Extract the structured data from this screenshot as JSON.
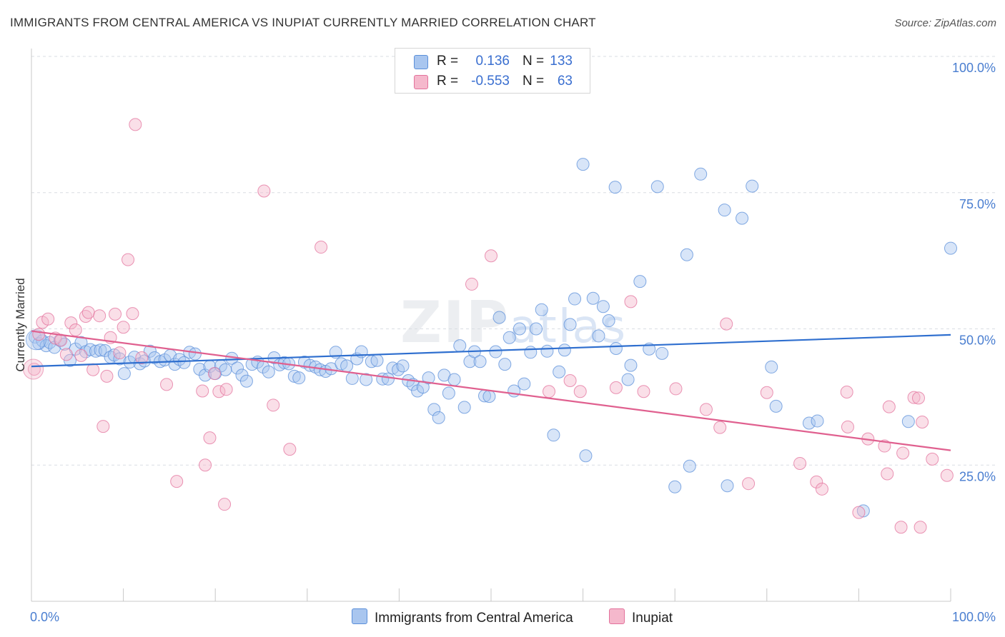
{
  "title": "IMMIGRANTS FROM CENTRAL AMERICA VS INUPIAT CURRENTLY MARRIED CORRELATION CHART",
  "source": "Source: ZipAtlas.com",
  "watermark": {
    "zip": "ZIP",
    "atlas": "atlas"
  },
  "colors": {
    "blue": "#5b8fd9",
    "blue_fill": "#a9c6ef",
    "pink": "#e3729c",
    "pink_fill": "#f5b8cc",
    "axis_text": "#4a7ed0"
  },
  "legend": {
    "rows": [
      {
        "r_label": "R =",
        "r_value": "0.136",
        "n_label": "N =",
        "n_value": "133"
      },
      {
        "r_label": "R =",
        "r_value": "-0.553",
        "n_label": "N =",
        "n_value": "63"
      }
    ]
  },
  "bottom_legend": [
    "Immigrants from Central America",
    "Inupiat"
  ],
  "chart_data": {
    "type": "scatter",
    "title": "IMMIGRANTS FROM CENTRAL AMERICA VS INUPIAT CURRENTLY MARRIED CORRELATION CHART",
    "xlabel": "",
    "ylabel": "Currently Married",
    "xlim": [
      0,
      100
    ],
    "ylim": [
      0,
      100
    ],
    "x_tick_labels": [
      "0.0%",
      "100.0%"
    ],
    "y_ticks": [
      25,
      50,
      75,
      100
    ],
    "y_tick_labels": [
      "25.0%",
      "50.0%",
      "75.0%",
      "100.0%"
    ],
    "grid": "horizontal dashed",
    "legend_position": "top-center",
    "series": [
      {
        "name": "Immigrants from Central America",
        "color": "#5b8fd9",
        "trend": {
          "x": [
            0,
            100
          ],
          "y": [
            43.1,
            48.9
          ]
        },
        "points": [
          [
            0.4,
            48.5
          ],
          [
            0.8,
            47.3
          ],
          [
            1.2,
            47.8
          ],
          [
            1.6,
            46.9
          ],
          [
            2.0,
            47.5
          ],
          [
            2.5,
            46.6
          ],
          [
            3.1,
            47.9
          ],
          [
            3.6,
            47.2
          ],
          [
            4.2,
            44.2
          ],
          [
            4.8,
            46.3
          ],
          [
            5.4,
            47.5
          ],
          [
            5.9,
            45.8
          ],
          [
            6.4,
            46.2
          ],
          [
            7.0,
            45.9
          ],
          [
            7.5,
            46.1
          ],
          [
            8.0,
            46.0
          ],
          [
            8.6,
            44.8
          ],
          [
            9.0,
            45.2
          ],
          [
            9.6,
            44.5
          ],
          [
            10.1,
            41.8
          ],
          [
            10.7,
            43.9
          ],
          [
            11.2,
            44.8
          ],
          [
            11.8,
            43.6
          ],
          [
            12.3,
            44.1
          ],
          [
            12.9,
            45.9
          ],
          [
            13.4,
            44.7
          ],
          [
            14.0,
            44.0
          ],
          [
            14.5,
            44.3
          ],
          [
            15.1,
            45.1
          ],
          [
            15.6,
            43.5
          ],
          [
            16.1,
            44.4
          ],
          [
            16.6,
            43.8
          ],
          [
            17.2,
            45.7
          ],
          [
            17.8,
            45.4
          ],
          [
            18.3,
            42.6
          ],
          [
            18.9,
            41.5
          ],
          [
            19.4,
            43.1
          ],
          [
            20.0,
            41.8
          ],
          [
            20.6,
            43.2
          ],
          [
            21.1,
            42.5
          ],
          [
            21.8,
            44.6
          ],
          [
            22.4,
            42.8
          ],
          [
            22.9,
            41.5
          ],
          [
            23.4,
            40.4
          ],
          [
            24.0,
            43.5
          ],
          [
            24.6,
            43.9
          ],
          [
            25.2,
            43.0
          ],
          [
            25.8,
            42.1
          ],
          [
            26.4,
            44.7
          ],
          [
            27.0,
            43.4
          ],
          [
            27.5,
            43.8
          ],
          [
            28.0,
            43.6
          ],
          [
            28.6,
            41.3
          ],
          [
            29.1,
            41.0
          ],
          [
            29.7,
            43.9
          ],
          [
            30.3,
            43.3
          ],
          [
            30.9,
            43.0
          ],
          [
            31.4,
            42.5
          ],
          [
            32.0,
            42.2
          ],
          [
            32.6,
            42.7
          ],
          [
            33.1,
            45.7
          ],
          [
            33.7,
            43.6
          ],
          [
            34.3,
            43.2
          ],
          [
            34.9,
            40.9
          ],
          [
            35.4,
            44.5
          ],
          [
            35.9,
            45.8
          ],
          [
            36.4,
            40.7
          ],
          [
            37.0,
            44.0
          ],
          [
            37.6,
            44.2
          ],
          [
            38.2,
            40.8
          ],
          [
            38.8,
            40.8
          ],
          [
            39.3,
            42.8
          ],
          [
            39.9,
            42.5
          ],
          [
            40.4,
            43.2
          ],
          [
            41.0,
            40.5
          ],
          [
            41.5,
            39.8
          ],
          [
            42.0,
            38.6
          ],
          [
            42.6,
            39.3
          ],
          [
            43.2,
            41.0
          ],
          [
            43.8,
            35.2
          ],
          [
            44.3,
            33.7
          ],
          [
            44.9,
            41.5
          ],
          [
            45.4,
            38.2
          ],
          [
            46.0,
            40.7
          ],
          [
            46.6,
            46.9
          ],
          [
            47.1,
            35.6
          ],
          [
            47.7,
            44.0
          ],
          [
            48.2,
            45.8
          ],
          [
            48.8,
            44.0
          ],
          [
            49.3,
            37.7
          ],
          [
            49.8,
            37.6
          ],
          [
            50.5,
            45.8
          ],
          [
            50.9,
            52.1
          ],
          [
            51.5,
            43.5
          ],
          [
            52.0,
            48.4
          ],
          [
            52.5,
            38.6
          ],
          [
            53.1,
            50.0
          ],
          [
            53.6,
            39.9
          ],
          [
            54.3,
            45.7
          ],
          [
            54.9,
            50.0
          ],
          [
            55.5,
            53.5
          ],
          [
            56.1,
            45.9
          ],
          [
            56.8,
            30.5
          ],
          [
            57.4,
            42.1
          ],
          [
            58.0,
            46.1
          ],
          [
            58.6,
            50.8
          ],
          [
            59.1,
            55.5
          ],
          [
            60.0,
            80.2
          ],
          [
            60.3,
            26.7
          ],
          [
            61.1,
            55.6
          ],
          [
            61.7,
            48.7
          ],
          [
            62.2,
            54.1
          ],
          [
            62.8,
            51.5
          ],
          [
            63.5,
            76.0
          ],
          [
            63.6,
            46.4
          ],
          [
            64.9,
            40.7
          ],
          [
            65.2,
            43.3
          ],
          [
            66.2,
            58.7
          ],
          [
            67.2,
            46.3
          ],
          [
            68.1,
            76.1
          ],
          [
            68.6,
            45.5
          ],
          [
            70.0,
            21.0
          ],
          [
            71.3,
            63.6
          ],
          [
            71.6,
            24.8
          ],
          [
            72.8,
            78.4
          ],
          [
            75.4,
            71.8
          ],
          [
            75.7,
            21.2
          ],
          [
            77.3,
            70.3
          ],
          [
            78.4,
            76.2
          ],
          [
            80.5,
            43.0
          ],
          [
            81.0,
            35.8
          ],
          [
            84.6,
            32.7
          ],
          [
            85.5,
            33.1
          ],
          [
            90.5,
            16.6
          ],
          [
            95.4,
            33.0
          ],
          [
            100.0,
            64.8
          ]
        ]
      },
      {
        "name": "Inupiat",
        "color": "#e3729c",
        "trend": {
          "x": [
            0,
            100
          ],
          "y": [
            49.6,
            27.7
          ]
        },
        "points": [
          [
            0.3,
            42.6
          ],
          [
            0.8,
            49.0
          ],
          [
            1.2,
            51.2
          ],
          [
            1.8,
            51.8
          ],
          [
            2.6,
            48.3
          ],
          [
            3.2,
            47.9
          ],
          [
            3.8,
            45.3
          ],
          [
            4.3,
            51.1
          ],
          [
            4.8,
            49.8
          ],
          [
            5.4,
            45.1
          ],
          [
            5.9,
            52.3
          ],
          [
            6.2,
            53.0
          ],
          [
            6.7,
            42.5
          ],
          [
            7.4,
            52.4
          ],
          [
            7.8,
            32.1
          ],
          [
            8.2,
            41.3
          ],
          [
            8.6,
            48.4
          ],
          [
            9.1,
            52.7
          ],
          [
            9.6,
            45.6
          ],
          [
            10.0,
            50.3
          ],
          [
            10.5,
            62.7
          ],
          [
            11.0,
            52.8
          ],
          [
            11.3,
            87.5
          ],
          [
            12.0,
            44.7
          ],
          [
            14.7,
            39.8
          ],
          [
            15.8,
            22.0
          ],
          [
            18.6,
            38.6
          ],
          [
            18.9,
            25.0
          ],
          [
            19.4,
            30.0
          ],
          [
            19.9,
            41.8
          ],
          [
            20.4,
            38.5
          ],
          [
            21.0,
            17.8
          ],
          [
            21.2,
            38.9
          ],
          [
            25.3,
            75.3
          ],
          [
            26.3,
            36.0
          ],
          [
            28.1,
            27.9
          ],
          [
            31.5,
            65.0
          ],
          [
            47.9,
            58.2
          ],
          [
            50.0,
            63.4
          ],
          [
            56.3,
            38.5
          ],
          [
            58.6,
            40.5
          ],
          [
            59.7,
            38.5
          ],
          [
            63.6,
            39.2
          ],
          [
            65.2,
            55.0
          ],
          [
            66.6,
            38.5
          ],
          [
            70.1,
            39.0
          ],
          [
            73.4,
            35.2
          ],
          [
            74.9,
            31.9
          ],
          [
            75.6,
            50.9
          ],
          [
            78.0,
            21.6
          ],
          [
            80.0,
            38.3
          ],
          [
            83.6,
            25.3
          ],
          [
            85.4,
            21.9
          ],
          [
            86.0,
            20.6
          ],
          [
            88.7,
            38.4
          ],
          [
            88.8,
            32.0
          ],
          [
            90.0,
            16.3
          ],
          [
            91.0,
            29.8
          ],
          [
            92.8,
            28.5
          ],
          [
            93.1,
            23.4
          ],
          [
            93.3,
            35.7
          ],
          [
            94.6,
            13.6
          ],
          [
            94.8,
            27.2
          ],
          [
            96.0,
            37.4
          ],
          [
            96.5,
            37.3
          ],
          [
            96.7,
            13.6
          ],
          [
            96.9,
            32.9
          ],
          [
            98.0,
            26.1
          ],
          [
            99.6,
            23.1
          ]
        ]
      }
    ]
  }
}
